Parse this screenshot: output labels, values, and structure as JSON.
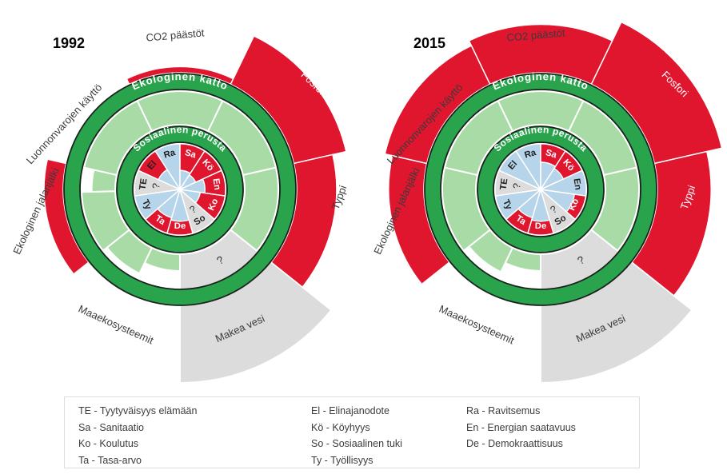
{
  "chart_data": {
    "type": "sunburst",
    "title": "",
    "rings": {
      "social_foundation_label": "Sosiaalinen perusta",
      "ecological_ceiling_label": "Ekologinen katto"
    },
    "unknown_marker": "?",
    "social_indicators": [
      {
        "code": "Ra",
        "name": "Ravitsemus"
      },
      {
        "code": "Sa",
        "name": "Sanitaatio"
      },
      {
        "code": "Kö",
        "name": "Köyhyys"
      },
      {
        "code": "En",
        "name": "Energian saatavuus"
      },
      {
        "code": "Ko",
        "name": "Koulutus"
      },
      {
        "code": "So",
        "name": "Sosiaalinen tuki"
      },
      {
        "code": "De",
        "name": "Demokraattisuus"
      },
      {
        "code": "Ta",
        "name": "Tasa-arvo"
      },
      {
        "code": "Ty",
        "name": "Työllisyys"
      },
      {
        "code": "TE",
        "name": "Tyytyväisyys elämään"
      },
      {
        "code": "El",
        "name": "Elinajanodote"
      }
    ],
    "ecological_sectors": [
      "CO2 päästöt",
      "Fosfori",
      "Typpi",
      "Makea vesi",
      "Maaekosysteemit",
      "Ekologinen jalanjälki",
      "Luonnonvarojen käyttö"
    ],
    "years": [
      {
        "label": "1992",
        "social": {
          "Ra": {
            "level": 1.0,
            "status": "ok",
            "label_style": "dark"
          },
          "Sa": {
            "level": 0.42,
            "status": "shortfall",
            "label_style": "light"
          },
          "Kö": {
            "level": 0.38,
            "status": "shortfall",
            "label_style": "light"
          },
          "En": {
            "level": 0.55,
            "status": "shortfall",
            "label_style": "light"
          },
          "Ko": {
            "level": 0.45,
            "status": "shortfall",
            "label_style": "light"
          },
          "So": {
            "level": null,
            "status": "unknown",
            "label_style": "dark"
          },
          "De": {
            "level": 0.7,
            "status": "shortfall",
            "label_style": "light"
          },
          "Ta": {
            "level": 0.65,
            "status": "shortfall",
            "label_style": "light"
          },
          "Ty": {
            "level": 1.0,
            "status": "ok",
            "label_style": "dark"
          },
          "TE": {
            "level": null,
            "status": "unknown",
            "label_style": "dark"
          },
          "El": {
            "level": 0.52,
            "status": "shortfall",
            "label_style": "dark"
          }
        },
        "ecological": {
          "CO2 päästöt": {
            "status": "overshoot",
            "overshoot": 0.08,
            "steps": null
          },
          "Fosfori": {
            "status": "overshoot",
            "overshoot": 0.7,
            "steps": null
          },
          "Typpi": {
            "status": "overshoot",
            "overshoot": 0.52,
            "steps": null
          },
          "Makea vesi": {
            "status": "unknown",
            "overshoot": 1.0,
            "steps": null
          },
          "Maaekosysteemit": {
            "status": "within",
            "overshoot": 0,
            "steps": [
              [
                0,
                0.5,
                0.5
              ],
              [
                0.5,
                1,
                0.85
              ]
            ]
          },
          "Ekologinen jalanjälki": {
            "status": "overshoot",
            "overshoot": 0.25,
            "steps": [
              [
                0,
                0.72,
                1.0
              ],
              [
                0.72,
                1,
                0.7
              ]
            ]
          },
          "Luonnonvarojen käyttö": {
            "status": "within",
            "overshoot": 0,
            "steps": null
          }
        }
      },
      {
        "label": "2015",
        "social": {
          "Ra": {
            "level": 1.0,
            "status": "ok",
            "label_style": "dark"
          },
          "Sa": {
            "level": 0.6,
            "status": "shortfall",
            "label_style": "light"
          },
          "Kö": {
            "level": 0.55,
            "status": "shortfall",
            "label_style": "light"
          },
          "En": {
            "level": 1.0,
            "status": "ok",
            "label_style": "dark"
          },
          "Ko": {
            "level": 0.75,
            "status": "shortfall",
            "label_style": "light"
          },
          "So": {
            "level": null,
            "status": "unknown",
            "label_style": "dark"
          },
          "De": {
            "level": 0.7,
            "status": "shortfall",
            "label_style": "light"
          },
          "Ta": {
            "level": 0.65,
            "status": "shortfall",
            "label_style": "light"
          },
          "Ty": {
            "level": 1.0,
            "status": "ok",
            "label_style": "dark"
          },
          "TE": {
            "level": null,
            "status": "unknown",
            "label_style": "dark"
          },
          "El": {
            "level": 1.0,
            "status": "ok",
            "label_style": "dark"
          }
        },
        "ecological": {
          "CO2 päästöt": {
            "status": "overshoot",
            "overshoot": 0.63,
            "steps": null
          },
          "Fosfori": {
            "status": "overshoot",
            "overshoot": 0.9,
            "steps": null
          },
          "Typpi": {
            "status": "overshoot",
            "overshoot": 0.7,
            "steps": null
          },
          "Makea vesi": {
            "status": "unknown",
            "overshoot": 1.0,
            "steps": null
          },
          "Maaekosysteemit": {
            "status": "within",
            "overshoot": 0,
            "steps": [
              [
                0,
                0.5,
                0.5
              ],
              [
                0.5,
                1,
                0.8
              ]
            ]
          },
          "Ekologinen jalanjälki": {
            "status": "overshoot",
            "overshoot": 0.46,
            "steps": null
          },
          "Luonnonvarojen käyttö": {
            "status": "overshoot",
            "overshoot": 0.56,
            "steps": null
          }
        }
      }
    ],
    "colors": {
      "overshoot_red": "#E0152E",
      "ring_green": "#2AA34D",
      "safe_light_green": "#A8DBA6",
      "social_blue": "#B7D5EA",
      "unknown_grey": "#DCDCDC",
      "outline_dark": "#1B221D",
      "text_dark": "#3B3B3B",
      "text_light": "#FFFFFF"
    },
    "legend": {
      "separator": " - ",
      "columns": [
        [
          "TE",
          "Sa",
          "Ko",
          "Ta"
        ],
        [
          "El",
          "Kö",
          "So",
          "Ty"
        ],
        [
          "Ra",
          "En",
          "De"
        ]
      ]
    }
  }
}
